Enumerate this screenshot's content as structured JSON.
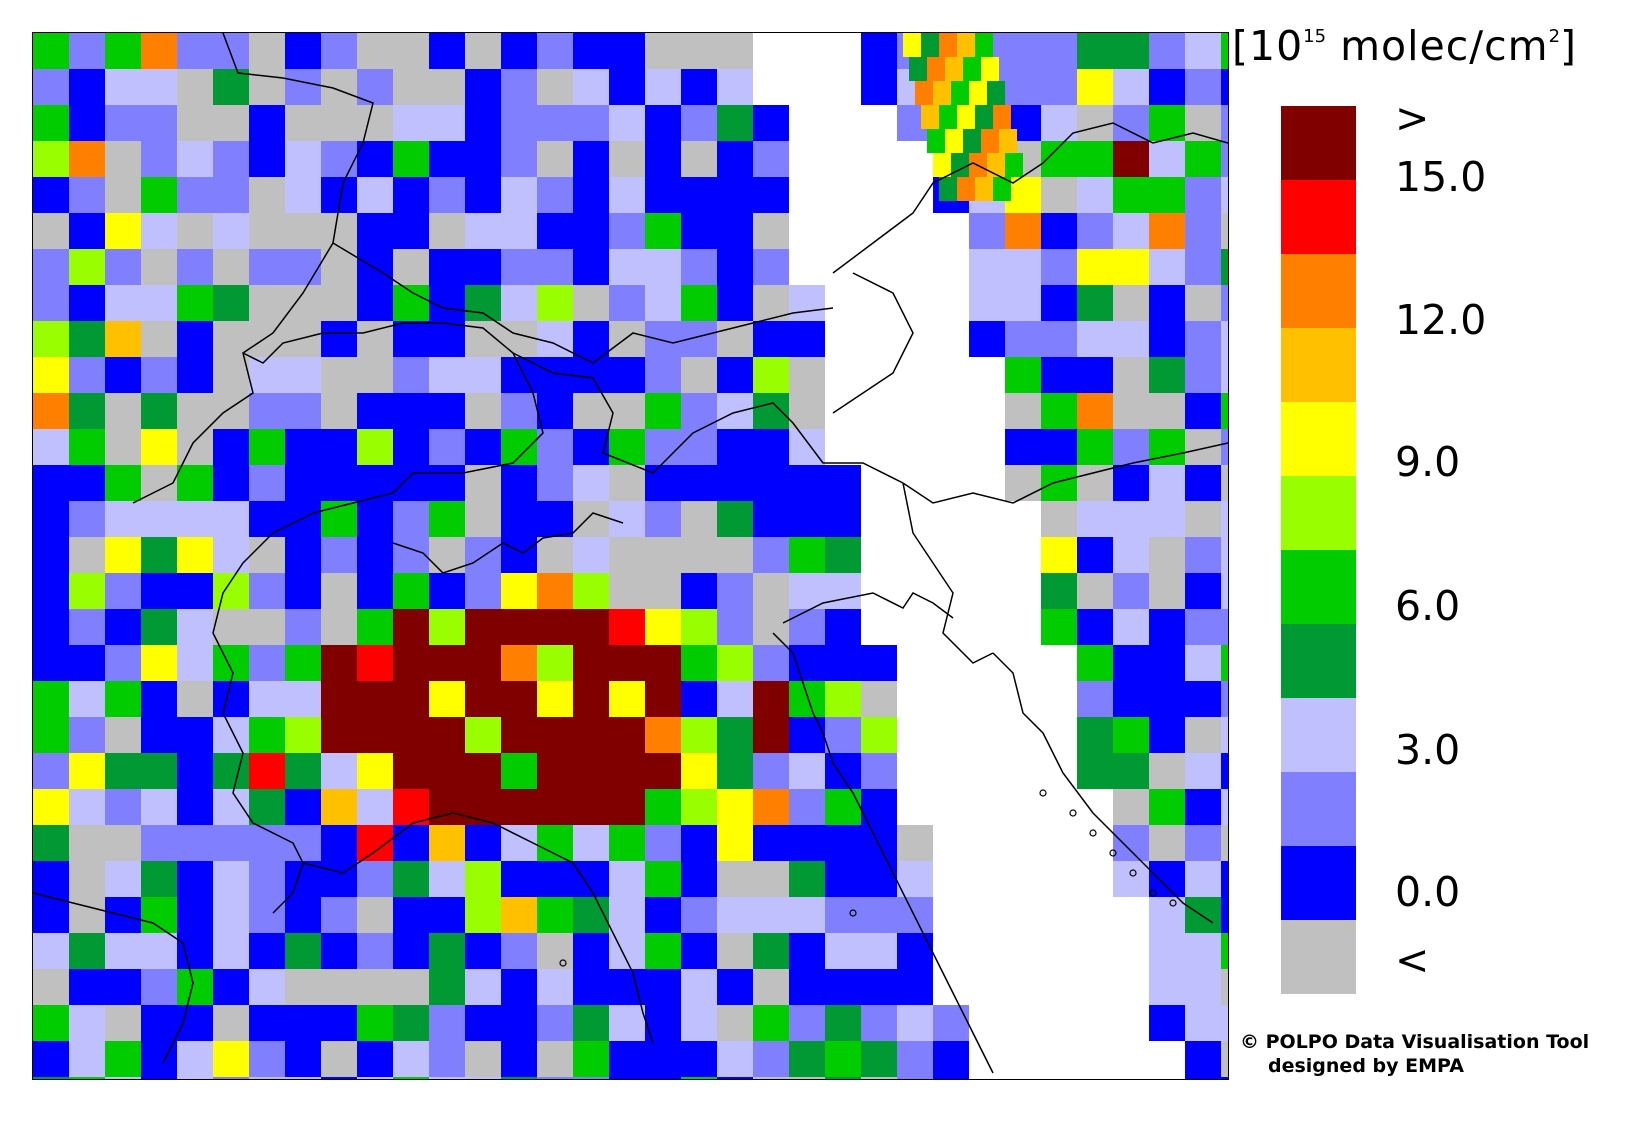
{
  "unit": {
    "prefix": "[10",
    "exponent": "15",
    "suffix": " molec/cm",
    "square": "2",
    "close": "]"
  },
  "legend": {
    "colors": [
      "#800000",
      "#ff0000",
      "#ff8000",
      "#ffc000",
      "#ffff00",
      "#99ff00",
      "#00cc00",
      "#009933",
      "#c0c0ff",
      "#8080ff",
      "#0000ff",
      "#c0c0c0"
    ],
    "labels": [
      ">",
      "15.0",
      "12.0",
      "9.0",
      "6.0",
      "3.0",
      "0.0",
      "<"
    ]
  },
  "credit": {
    "line1": "© POLPO Data Visualisation Tool",
    "line2": "designed by EMPA"
  },
  "colors": {
    "no_data": "#ffffff",
    "border_lines": "#000000"
  }
}
